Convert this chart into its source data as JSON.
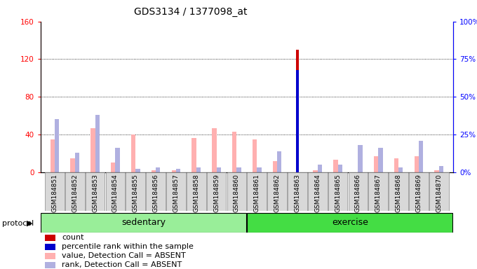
{
  "title": "GDS3134 / 1377098_at",
  "samples": [
    "GSM184851",
    "GSM184852",
    "GSM184853",
    "GSM184854",
    "GSM184855",
    "GSM184856",
    "GSM184857",
    "GSM184858",
    "GSM184859",
    "GSM184860",
    "GSM184861",
    "GSM184862",
    "GSM184863",
    "GSM184864",
    "GSM184865",
    "GSM184866",
    "GSM184867",
    "GSM184868",
    "GSM184869",
    "GSM184870"
  ],
  "count_values": [
    0,
    0,
    0,
    0,
    0,
    0,
    0,
    0,
    0,
    0,
    0,
    0,
    130,
    0,
    0,
    0,
    0,
    0,
    0,
    0
  ],
  "percentile_values": [
    0,
    0,
    0,
    0,
    0,
    0,
    0,
    0,
    0,
    0,
    0,
    0,
    68,
    0,
    0,
    0,
    0,
    0,
    0,
    0
  ],
  "absent_value": [
    35,
    15,
    47,
    10,
    40,
    2,
    2,
    36,
    47,
    43,
    35,
    12,
    0,
    2,
    13,
    0,
    17,
    15,
    17,
    2
  ],
  "absent_rank": [
    35,
    13,
    38,
    16,
    2,
    3,
    2,
    3,
    3,
    3,
    3,
    14,
    0,
    5,
    5,
    18,
    16,
    3,
    21,
    4
  ],
  "protocol_groups": [
    {
      "label": "sedentary",
      "start": 0,
      "end": 10
    },
    {
      "label": "exercise",
      "start": 10,
      "end": 20
    }
  ],
  "ylim_left": [
    0,
    160
  ],
  "ylim_right": [
    0,
    100
  ],
  "yticks_left": [
    0,
    40,
    80,
    120,
    160
  ],
  "ytick_labels_left": [
    "0",
    "40",
    "80",
    "120",
    "160"
  ],
  "yticks_right": [
    0,
    25,
    50,
    75,
    100
  ],
  "ytick_labels_right": [
    "0%",
    "25%",
    "50%",
    "75%",
    "100%"
  ],
  "bg_color": "#d8d8d8",
  "plot_bg": "#ffffff",
  "count_color": "#cc0000",
  "percentile_color": "#0000cc",
  "absent_value_color": "#ffb0b0",
  "absent_rank_color": "#b0b0e0",
  "group_color_sedentary": "#99ee99",
  "group_color_exercise": "#44dd44",
  "bar_width": 0.22
}
